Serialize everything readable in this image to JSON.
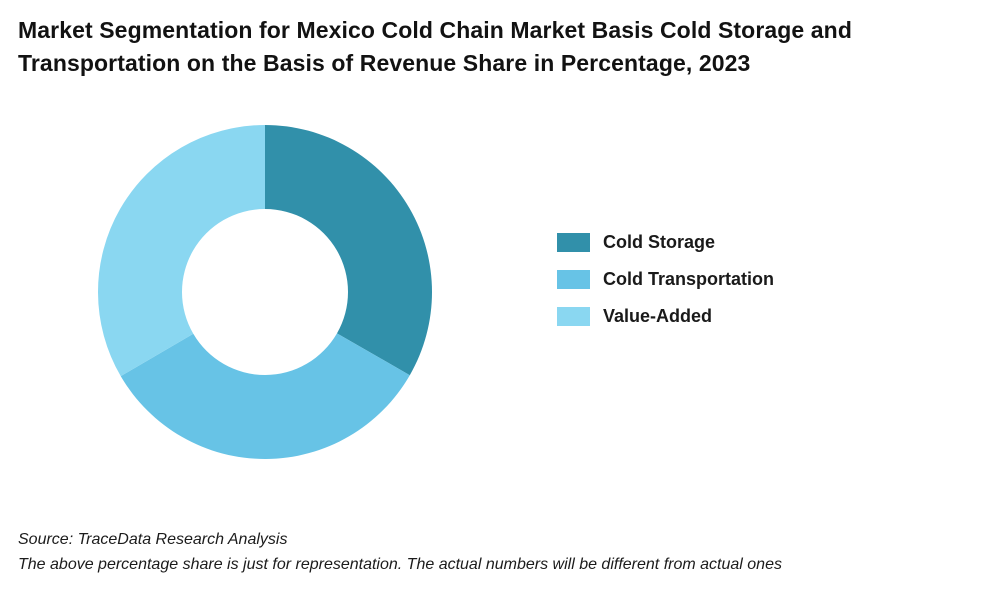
{
  "title": {
    "line1": "Market Segmentation for Mexico Cold Chain Market Basis Cold Storage and",
    "line2": "Transportation on the Basis of Revenue Share in Percentage, 2023"
  },
  "chart_data": {
    "type": "pie",
    "donut": true,
    "title": "Market Segmentation for Mexico Cold Chain Market Basis Cold Storage and Transportation on the Basis of Revenue Share in Percentage, 2023",
    "categories": [
      "Cold Storage",
      "Cold Transportation",
      "Value-Added"
    ],
    "values": [
      33.3,
      33.3,
      33.4
    ],
    "unit": "%",
    "colors": [
      "#3190aa",
      "#67c3e6",
      "#8ad7f1"
    ],
    "legend_position": "right"
  },
  "footnotes": {
    "source": "Source: TraceData Research Analysis",
    "disclaimer": "The above percentage share is just for representation. The actual numbers will be different from actual ones"
  }
}
